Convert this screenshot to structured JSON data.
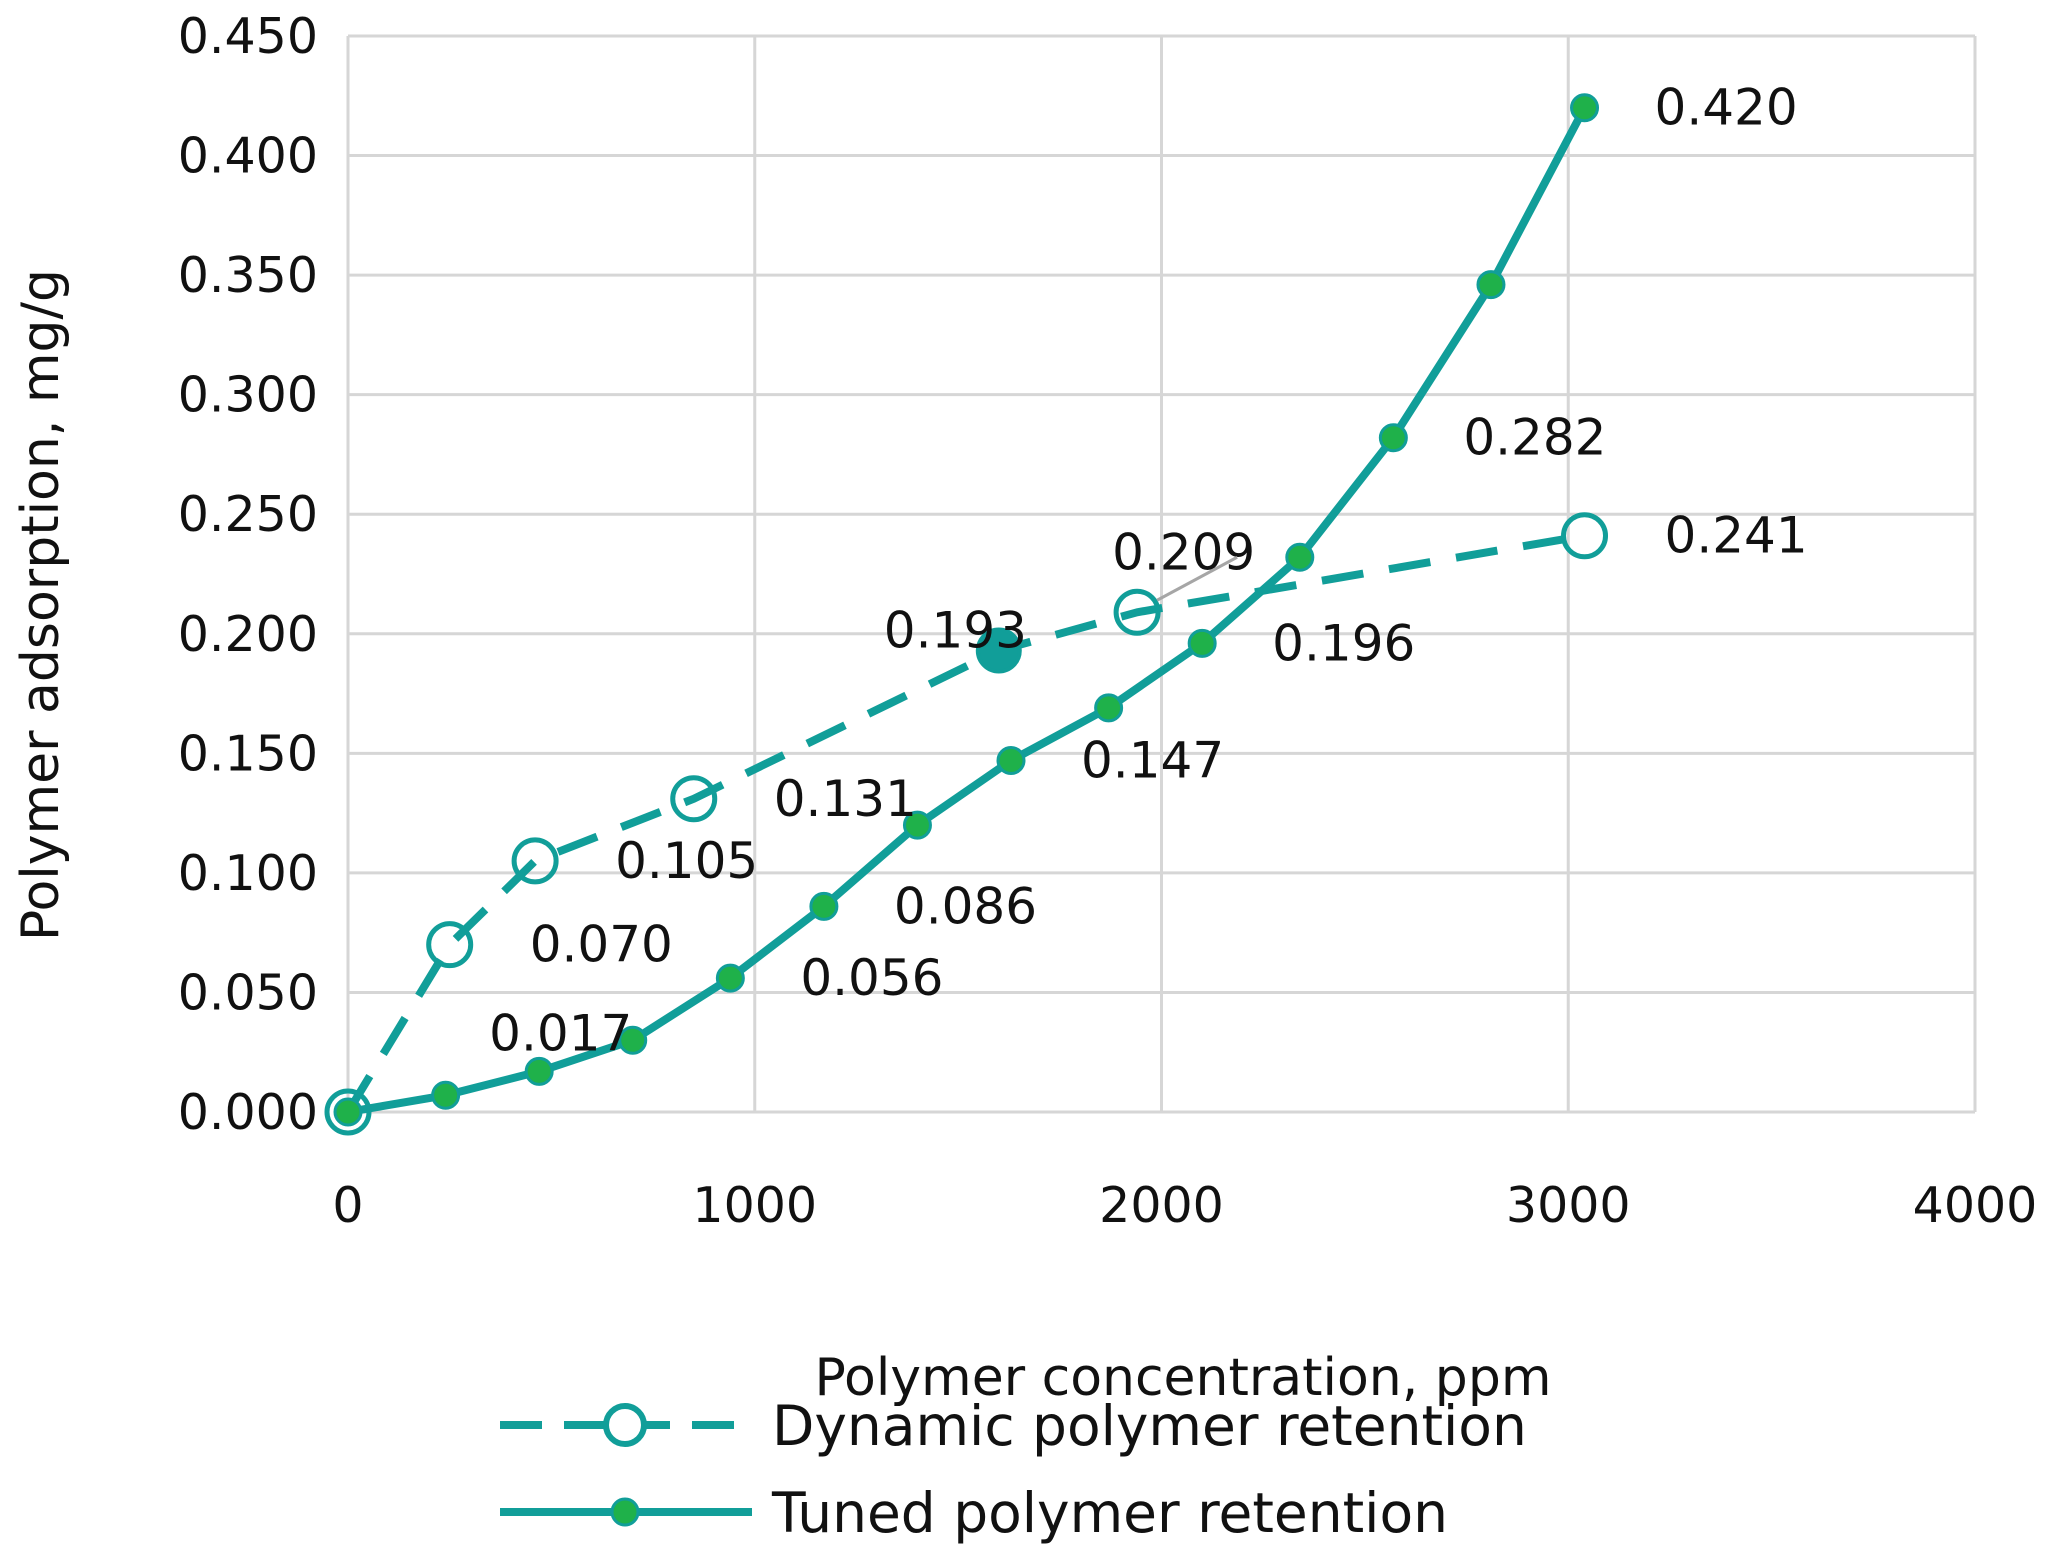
{
  "chart_data": {
    "type": "line",
    "title": "",
    "xlabel": "Polymer concentration, ppm",
    "ylabel": "Polymer adsorption, mg/g",
    "xlim": [
      0,
      4000
    ],
    "ylim": [
      0,
      0.45
    ],
    "x_ticks": [
      "0",
      "1000",
      "2000",
      "3000",
      "4000"
    ],
    "y_ticks": [
      "0.000",
      "0.050",
      "0.100",
      "0.150",
      "0.200",
      "0.250",
      "0.300",
      "0.350",
      "0.400",
      "0.450"
    ],
    "grid": true,
    "legend_position": "bottom",
    "series": [
      {
        "name": "Dynamic polymer retention",
        "style": "dashed",
        "marker": "open-circle",
        "color": "#119e99",
        "x": [
          0,
          250,
          460,
          850,
          1600,
          1940,
          3040
        ],
        "y": [
          0.0,
          0.07,
          0.105,
          0.131,
          0.193,
          0.209,
          0.241
        ],
        "labels": [
          "",
          "0.070",
          "0.105",
          "0.131",
          "0.193",
          "0.209",
          "0.241"
        ]
      },
      {
        "name": "Tuned polymer retention",
        "style": "solid",
        "marker": "filled-circle",
        "color": "#119e99",
        "marker_color": "#1fb14a",
        "x": [
          0,
          240,
          470,
          700,
          940,
          1170,
          1400,
          1630,
          1870,
          2100,
          2340,
          2570,
          2810,
          3040
        ],
        "y": [
          0.0,
          0.007,
          0.017,
          0.03,
          0.056,
          0.086,
          0.12,
          0.147,
          0.169,
          0.196,
          0.232,
          0.282,
          0.346,
          0.42
        ],
        "labels": [
          "",
          "",
          "0.017",
          "",
          "0.056",
          "0.086",
          "",
          "0.147",
          "",
          "0.196",
          "",
          "0.282",
          "",
          "0.420"
        ]
      }
    ]
  }
}
